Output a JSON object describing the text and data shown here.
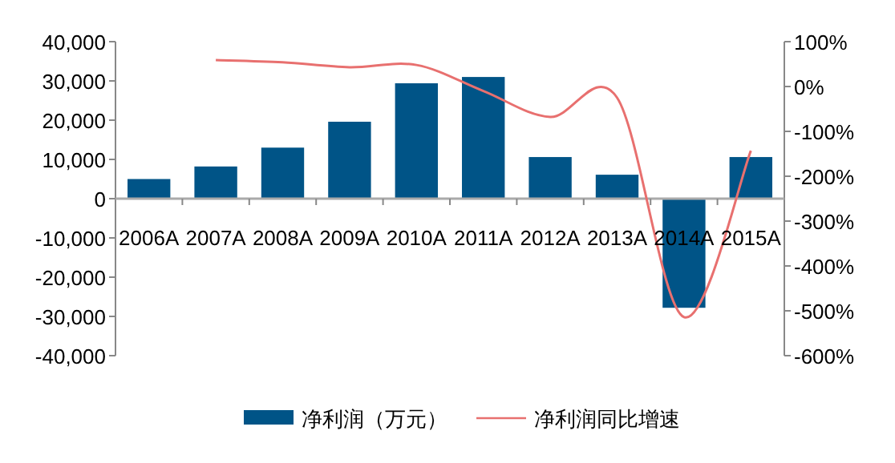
{
  "chart_data": {
    "type": "bar",
    "categories": [
      "2006A",
      "2007A",
      "2008A",
      "2009A",
      "2010A",
      "2011A",
      "2012A",
      "2013A",
      "2014A",
      "2015A"
    ],
    "series": [
      {
        "name": "净利润（万元）",
        "color": "#005487",
        "values": [
          5000,
          8200,
          13000,
          19600,
          29400,
          31000,
          10600,
          6100,
          -27800,
          10600
        ]
      },
      {
        "name": "净利润同比增速",
        "color": "#e8706f",
        "type": "line",
        "axis": "y2",
        "values": [
          null,
          59,
          54,
          43,
          48,
          -10,
          -68,
          -25,
          -514,
          -143
        ]
      }
    ],
    "ylim": [
      -40000,
      40000
    ],
    "yticks": [
      {
        "value": -40000,
        "label": "-40,000"
      },
      {
        "value": -30000,
        "label": "-30,000"
      },
      {
        "value": -20000,
        "label": "-20,000"
      },
      {
        "value": -10000,
        "label": "-10,000"
      },
      {
        "value": 0,
        "label": "0"
      },
      {
        "value": 10000,
        "label": "10,000"
      },
      {
        "value": 20000,
        "label": "20,000"
      },
      {
        "value": 30000,
        "label": "30,000"
      },
      {
        "value": 40000,
        "label": "40,000"
      }
    ],
    "y2lim": [
      -600,
      100
    ],
    "y2ticks": [
      {
        "value": -600,
        "label": "-600%"
      },
      {
        "value": -500,
        "label": "-500%"
      },
      {
        "value": -400,
        "label": "-400%"
      },
      {
        "value": -300,
        "label": "-300%"
      },
      {
        "value": -200,
        "label": "-200%"
      },
      {
        "value": -100,
        "label": "-100%"
      },
      {
        "value": 0,
        "label": "0%"
      },
      {
        "value": 100,
        "label": "100%"
      }
    ],
    "legend": "bottom",
    "grid": false
  }
}
